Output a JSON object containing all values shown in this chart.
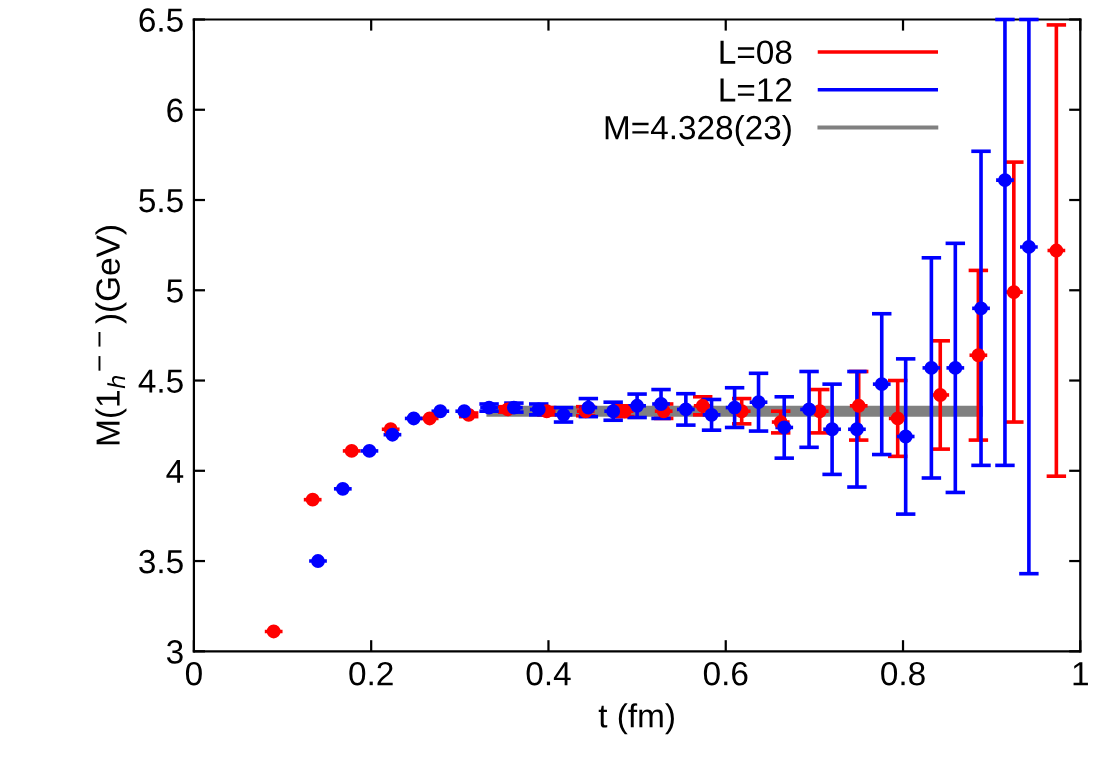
{
  "chart_data": {
    "type": "scatter",
    "xlabel": "t (fm)",
    "ylabel": "M(1$_{h}$$^{−−}$)(GeV)",
    "xlim": [
      0,
      1
    ],
    "ylim": [
      3,
      6.5
    ],
    "xticks": [
      0,
      0.2,
      0.4,
      0.6,
      0.8,
      1
    ],
    "yticks": [
      3,
      3.5,
      4,
      4.5,
      5,
      5.5,
      6,
      6.5
    ],
    "grid": false,
    "legend": "top right",
    "series": [
      {
        "name": "L=08",
        "color": "#ff0000",
        "marker": "circle",
        "x": [
          0.09,
          0.134,
          0.178,
          0.222,
          0.266,
          0.31,
          0.354,
          0.398,
          0.442,
          0.486,
          0.53,
          0.574,
          0.618,
          0.662,
          0.706,
          0.75,
          0.794,
          0.842,
          0.885,
          0.925,
          0.973
        ],
        "values": [
          3.11,
          3.84,
          4.11,
          4.23,
          4.29,
          4.31,
          4.34,
          4.33,
          4.33,
          4.33,
          4.33,
          4.36,
          4.33,
          4.27,
          4.33,
          4.36,
          4.29,
          4.42,
          4.64,
          4.99,
          5.22
        ],
        "errors": [
          null,
          null,
          null,
          null,
          null,
          0.01,
          0.015,
          0.02,
          0.025,
          0.03,
          0.04,
          0.05,
          0.07,
          0.06,
          0.12,
          0.19,
          0.21,
          0.3,
          0.47,
          0.72,
          1.25
        ],
        "xerrors": [
          0.01,
          0.01,
          0.01,
          0.01,
          0.01,
          0.01,
          0.01,
          0.01,
          0.01,
          0.01,
          0.01,
          0.01,
          0.01,
          0.01,
          0.01,
          0.01,
          0.01,
          0.01,
          0.01,
          0.01,
          0.01
        ]
      },
      {
        "name": "L=12",
        "color": "#0000ff",
        "marker": "circle",
        "x": [
          0.14,
          0.168,
          0.198,
          0.224,
          0.248,
          0.278,
          0.305,
          0.333,
          0.361,
          0.389,
          0.417,
          0.445,
          0.473,
          0.5,
          0.527,
          0.555,
          0.584,
          0.61,
          0.637,
          0.666,
          0.694,
          0.72,
          0.748,
          0.776,
          0.803,
          0.832,
          0.859,
          0.888,
          0.915,
          0.942
        ],
        "values": [
          3.5,
          3.9,
          4.11,
          4.2,
          4.29,
          4.33,
          4.33,
          4.35,
          4.35,
          4.34,
          4.31,
          4.35,
          4.33,
          4.36,
          4.37,
          4.34,
          4.31,
          4.35,
          4.38,
          4.24,
          4.34,
          4.23,
          4.23,
          4.48,
          4.19,
          4.57,
          4.57,
          4.9,
          5.61,
          5.24
        ],
        "errors": [
          null,
          null,
          null,
          null,
          null,
          null,
          null,
          0.02,
          0.025,
          0.03,
          0.04,
          0.05,
          0.05,
          0.065,
          0.08,
          0.087,
          0.085,
          0.11,
          0.16,
          0.17,
          0.21,
          0.25,
          0.32,
          0.39,
          0.43,
          0.61,
          0.69,
          0.87,
          [
            4.03,
            6.5
          ],
          [
            3.43,
            6.5
          ]
        ],
        "xerrors": [
          0.01,
          0.01,
          0.01,
          0.01,
          0.01,
          0.01,
          0.01,
          0.01,
          0.01,
          0.01,
          0.01,
          0.01,
          0.01,
          0.01,
          0.01,
          0.01,
          0.01,
          0.01,
          0.01,
          0.01,
          0.01,
          0.01,
          0.01,
          0.01,
          0.01,
          0.01,
          0.01,
          0.01,
          0.01,
          0.01
        ]
      },
      {
        "name": "M=4.328(23)",
        "type": "line",
        "color": "#808080",
        "x": [
          0.33,
          0.89
        ],
        "values": [
          4.33,
          4.33
        ]
      }
    ]
  }
}
